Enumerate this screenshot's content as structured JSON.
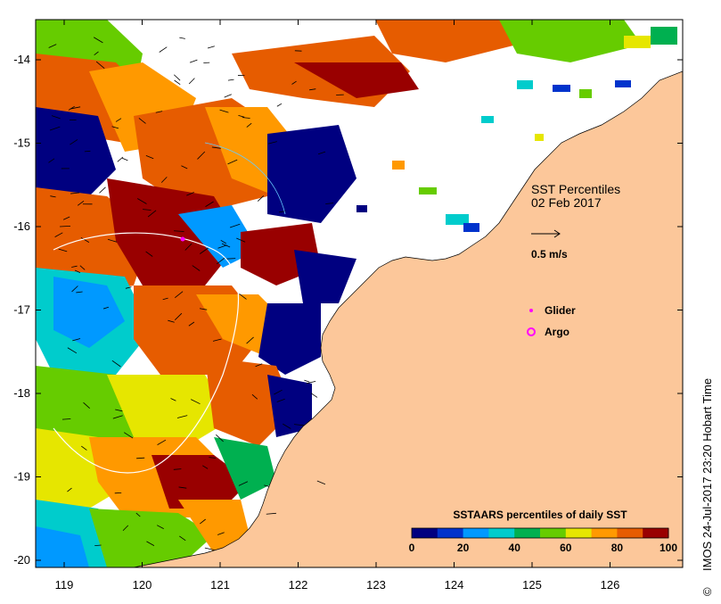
{
  "map": {
    "title_line1": "SST Percentiles",
    "title_line2": "02 Feb 2017",
    "vector_scale_label": "0.5 m/s",
    "legend_title": "SSTAARS percentiles of daily SST",
    "legend_ticks": [
      "0",
      "20",
      "40",
      "60",
      "80",
      "100"
    ],
    "legend_colors": [
      "#000080",
      "#0033cc",
      "#0099ff",
      "#00cccc",
      "#00b050",
      "#66cc00",
      "#e6e600",
      "#ff9900",
      "#e65c00",
      "#990000"
    ],
    "x_ticks": [
      "119",
      "120",
      "121",
      "122",
      "123",
      "124",
      "125",
      "126"
    ],
    "y_ticks": [
      "-14",
      "-15",
      "-16",
      "-17",
      "-18",
      "-19",
      "-20"
    ],
    "markers": {
      "glider_label": "Glider",
      "argo_label": "Argo",
      "glider_color": "#ff00ff",
      "argo_color": "#ff00ff"
    },
    "side_caption": "IMOS 24-Jul-2017 23:20 Hobart Time",
    "copyright_symbol": "©",
    "land_color": "#fcc79a",
    "nodata_color": "#ffffff"
  }
}
